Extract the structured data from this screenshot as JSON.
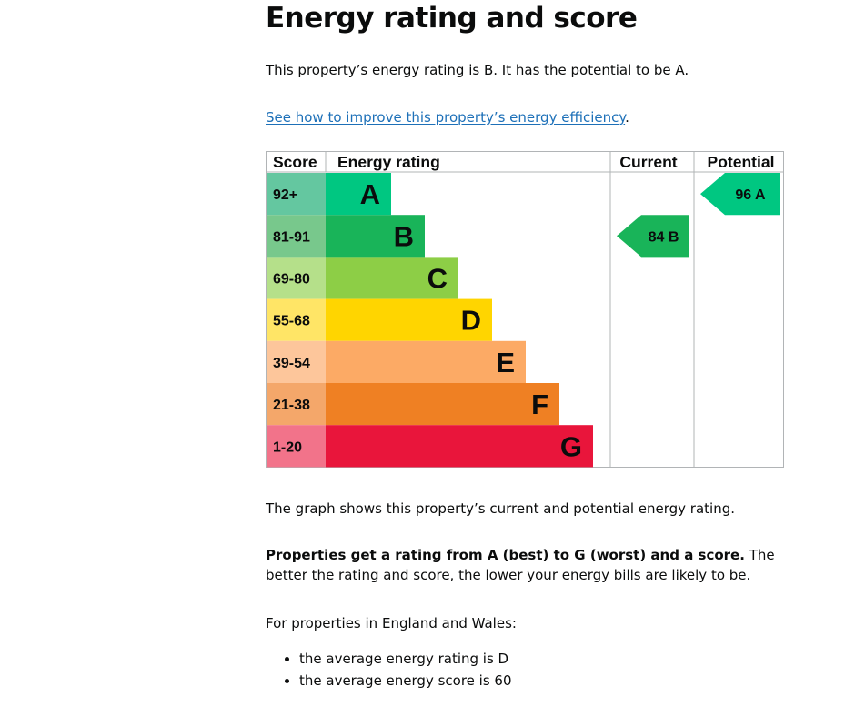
{
  "page": {
    "title": "Energy rating and score",
    "intro": "This property’s energy rating is B. It has the potential to be A.",
    "link_text": "See how to improve this property’s energy efficiency",
    "link_suffix": ".",
    "graph_caption": "The graph shows this property’s current and potential energy rating.",
    "rating_info_bold": "Properties get a rating from A (best) to G (worst) and a score.",
    "rating_info_rest": " The better the rating and score, the lower your energy bills are likely to be.",
    "region_intro": "For properties in England and Wales:",
    "bullets": [
      "the average energy rating is D",
      "the average energy score is 60"
    ]
  },
  "chart_data": {
    "type": "bar",
    "headers": {
      "score": "Score",
      "rating": "Energy rating",
      "current": "Current",
      "potential": "Potential"
    },
    "bands": [
      {
        "score": "92+",
        "letter": "A",
        "color": "#008054",
        "score_bg": "#64c7a0",
        "bar_color": "#00c781"
      },
      {
        "score": "81-91",
        "letter": "B",
        "color": "#19b459",
        "score_bg": "#78c88c",
        "bar_color": "#19b459"
      },
      {
        "score": "69-80",
        "letter": "C",
        "color": "#8dce46",
        "score_bg": "#b5e08a",
        "bar_color": "#8dce46"
      },
      {
        "score": "55-68",
        "letter": "D",
        "color": "#ffd500",
        "score_bg": "#ffe566",
        "bar_color": "#ffd500"
      },
      {
        "score": "39-54",
        "letter": "E",
        "color": "#fcaa65",
        "score_bg": "#fdc69b",
        "bar_color": "#fcaa65"
      },
      {
        "score": "21-38",
        "letter": "F",
        "color": "#ef8023",
        "score_bg": "#f4a76a",
        "bar_color": "#ef8023"
      },
      {
        "score": "1-20",
        "letter": "G",
        "color": "#e9153b",
        "score_bg": "#f2738a",
        "bar_color": "#e9153b"
      }
    ],
    "current": {
      "score": 84,
      "letter": "B",
      "label": "84 B",
      "color": "#19b459"
    },
    "potential": {
      "score": 96,
      "letter": "A",
      "label": "96 A",
      "color": "#00c781"
    }
  }
}
